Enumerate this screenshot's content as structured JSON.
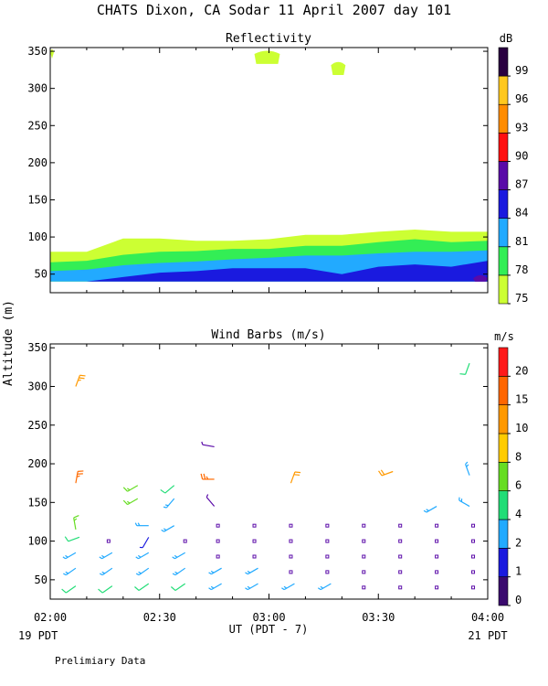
{
  "title": "CHATS Dixon, CA  Sodar  11 April 2007  day 101",
  "ylabel": "Altitude (m)",
  "xlabel": "UT  (PDT - 7)",
  "left_date": "19 PDT",
  "right_date": "21 PDT",
  "footnote": "Prelimiary Data",
  "x_ticks": [
    "02:00",
    "02:30",
    "03:00",
    "03:30",
    "04:00"
  ],
  "y_ticks": [
    "50",
    "100",
    "150",
    "200",
    "250",
    "300",
    "350"
  ],
  "chart_data": [
    {
      "type": "area",
      "title": "Reflectivity",
      "xlim": [
        0,
        120
      ],
      "ylim": [
        25,
        355
      ],
      "x_unit": "minutes after 02:00 UT",
      "colorbar": {
        "unit": "dB",
        "levels": [
          "75",
          "78",
          "81",
          "84",
          "87",
          "90",
          "93",
          "96",
          "99"
        ],
        "colors": [
          "#ccff33",
          "#33ee55",
          "#22aaff",
          "#1a1adf",
          "#5a0aa8",
          "#ff1010",
          "#ff8c00",
          "#ffc81e",
          "#2a0040"
        ]
      },
      "layers": [
        {
          "level": "75",
          "color": "#ccff33",
          "top": [
            [
              0,
              80
            ],
            [
              10,
              80
            ],
            [
              20,
              98
            ],
            [
              30,
              98
            ],
            [
              40,
              95
            ],
            [
              50,
              95
            ],
            [
              60,
              97
            ],
            [
              70,
              103
            ],
            [
              80,
              103
            ],
            [
              90,
              107
            ],
            [
              100,
              110
            ],
            [
              110,
              107
            ],
            [
              120,
              107
            ]
          ]
        },
        {
          "level": "78",
          "color": "#33ee55",
          "top": [
            [
              0,
              66
            ],
            [
              10,
              68
            ],
            [
              20,
              76
            ],
            [
              30,
              80
            ],
            [
              40,
              81
            ],
            [
              50,
              84
            ],
            [
              60,
              84
            ],
            [
              70,
              88
            ],
            [
              80,
              88
            ],
            [
              90,
              93
            ],
            [
              100,
              97
            ],
            [
              110,
              93
            ],
            [
              120,
              95
            ]
          ]
        },
        {
          "level": "81",
          "color": "#22aaff",
          "top": [
            [
              0,
              54
            ],
            [
              10,
              56
            ],
            [
              20,
              62
            ],
            [
              30,
              65
            ],
            [
              40,
              67
            ],
            [
              50,
              70
            ],
            [
              60,
              72
            ],
            [
              70,
              75
            ],
            [
              80,
              75
            ],
            [
              90,
              78
            ],
            [
              100,
              80
            ],
            [
              110,
              80
            ],
            [
              120,
              82
            ]
          ]
        },
        {
          "level": "84",
          "color": "#1a1adf",
          "top": [
            [
              0,
              40
            ],
            [
              10,
              40
            ],
            [
              20,
              46
            ],
            [
              30,
              52
            ],
            [
              40,
              54
            ],
            [
              50,
              58
            ],
            [
              60,
              58
            ],
            [
              70,
              58
            ],
            [
              80,
              50
            ],
            [
              90,
              60
            ],
            [
              100,
              63
            ],
            [
              110,
              60
            ],
            [
              120,
              68
            ]
          ]
        }
      ],
      "patches": [
        {
          "level": "75",
          "x": [
            -1,
            1
          ],
          "y": [
            340,
            352
          ]
        },
        {
          "level": "75",
          "x": [
            56,
            63
          ],
          "y": [
            333,
            350
          ]
        },
        {
          "level": "75",
          "x": [
            77,
            81
          ],
          "y": [
            318,
            335
          ]
        },
        {
          "level": "87",
          "x": [
            116,
            120
          ],
          "y": [
            40,
            48
          ]
        }
      ]
    },
    {
      "type": "scatter",
      "title": "Wind Barbs (m/s)",
      "xlim": [
        0,
        120
      ],
      "ylim": [
        25,
        355
      ],
      "colorbar": {
        "unit": "m/s",
        "levels": [
          "0",
          "1",
          "2",
          "4",
          "6",
          "8",
          "10",
          "15",
          "20"
        ],
        "colors": [
          "#3a0a6e",
          "#1a1adf",
          "#22aaff",
          "#22dd77",
          "#66dd22",
          "#ffcc00",
          "#ff9900",
          "#ff6600",
          "#ff1a1a"
        ]
      },
      "barbs": [
        {
          "t": 7,
          "z": 300,
          "dir": 20,
          "speed": 9,
          "color": "#ff9900"
        },
        {
          "t": 7,
          "z": 175,
          "dir": 10,
          "speed": 10,
          "color": "#ff6a00"
        },
        {
          "t": 7,
          "z": 115,
          "dir": 350,
          "speed": 5,
          "color": "#66dd22"
        },
        {
          "t": 8,
          "z": 105,
          "dir": 250,
          "speed": 4,
          "color": "#22dd77"
        },
        {
          "t": 7,
          "z": 85,
          "dir": 240,
          "speed": 3,
          "color": "#22aaff"
        },
        {
          "t": 7,
          "z": 65,
          "dir": 235,
          "speed": 3,
          "color": "#22aaff"
        },
        {
          "t": 7,
          "z": 42,
          "dir": 235,
          "speed": 4,
          "color": "#22dd77"
        },
        {
          "t": 17,
          "z": 85,
          "dir": 240,
          "speed": 3,
          "color": "#22aaff"
        },
        {
          "t": 17,
          "z": 65,
          "dir": 235,
          "speed": 3,
          "color": "#22aaff"
        },
        {
          "t": 17,
          "z": 42,
          "dir": 235,
          "speed": 4,
          "color": "#22dd77"
        },
        {
          "t": 16,
          "z": 100,
          "dir": 0,
          "speed": 0,
          "color": "#5a0aa8"
        },
        {
          "t": 24,
          "z": 172,
          "dir": 240,
          "speed": 5,
          "color": "#66dd22"
        },
        {
          "t": 24,
          "z": 155,
          "dir": 240,
          "speed": 5,
          "color": "#66dd22"
        },
        {
          "t": 27,
          "z": 120,
          "dir": 270,
          "speed": 3,
          "color": "#22aaff"
        },
        {
          "t": 27,
          "z": 105,
          "dir": 210,
          "speed": 1,
          "color": "#1a1adf"
        },
        {
          "t": 27,
          "z": 85,
          "dir": 240,
          "speed": 3,
          "color": "#22aaff"
        },
        {
          "t": 27,
          "z": 65,
          "dir": 235,
          "speed": 3,
          "color": "#22aaff"
        },
        {
          "t": 27,
          "z": 45,
          "dir": 235,
          "speed": 4,
          "color": "#22dd77"
        },
        {
          "t": 34,
          "z": 172,
          "dir": 230,
          "speed": 4,
          "color": "#22dd77"
        },
        {
          "t": 34,
          "z": 155,
          "dir": 220,
          "speed": 3,
          "color": "#22aaff"
        },
        {
          "t": 34,
          "z": 120,
          "dir": 240,
          "speed": 3,
          "color": "#22aaff"
        },
        {
          "t": 37,
          "z": 100,
          "dir": 0,
          "speed": 0,
          "color": "#5a0aa8"
        },
        {
          "t": 37,
          "z": 85,
          "dir": 240,
          "speed": 3,
          "color": "#22aaff"
        },
        {
          "t": 37,
          "z": 65,
          "dir": 235,
          "speed": 3,
          "color": "#22aaff"
        },
        {
          "t": 37,
          "z": 45,
          "dir": 235,
          "speed": 4,
          "color": "#22dd77"
        },
        {
          "t": 45,
          "z": 222,
          "dir": 280,
          "speed": 1,
          "color": "#5a0aa8"
        },
        {
          "t": 45,
          "z": 180,
          "dir": 270,
          "speed": 10,
          "color": "#ff6a00"
        },
        {
          "t": 45,
          "z": 145,
          "dir": 320,
          "speed": 1,
          "color": "#5a0aa8"
        },
        {
          "t": 46,
          "z": 120,
          "dir": 0,
          "speed": 0,
          "color": "#5a0aa8"
        },
        {
          "t": 46,
          "z": 100,
          "dir": 0,
          "speed": 0,
          "color": "#5a0aa8"
        },
        {
          "t": 46,
          "z": 80,
          "dir": 0,
          "speed": 0,
          "color": "#5a0aa8"
        },
        {
          "t": 47,
          "z": 65,
          "dir": 240,
          "speed": 3,
          "color": "#22aaff"
        },
        {
          "t": 47,
          "z": 45,
          "dir": 240,
          "speed": 3,
          "color": "#22aaff"
        },
        {
          "t": 56,
          "z": 120,
          "dir": 0,
          "speed": 0,
          "color": "#5a0aa8"
        },
        {
          "t": 56,
          "z": 100,
          "dir": 0,
          "speed": 0,
          "color": "#5a0aa8"
        },
        {
          "t": 56,
          "z": 80,
          "dir": 0,
          "speed": 0,
          "color": "#5a0aa8"
        },
        {
          "t": 57,
          "z": 65,
          "dir": 240,
          "speed": 3,
          "color": "#22aaff"
        },
        {
          "t": 57,
          "z": 45,
          "dir": 240,
          "speed": 3,
          "color": "#22aaff"
        },
        {
          "t": 66,
          "z": 175,
          "dir": 20,
          "speed": 8,
          "color": "#ff9900"
        },
        {
          "t": 66,
          "z": 120,
          "dir": 0,
          "speed": 0,
          "color": "#5a0aa8"
        },
        {
          "t": 66,
          "z": 100,
          "dir": 0,
          "speed": 0,
          "color": "#5a0aa8"
        },
        {
          "t": 66,
          "z": 80,
          "dir": 0,
          "speed": 0,
          "color": "#5a0aa8"
        },
        {
          "t": 66,
          "z": 60,
          "dir": 0,
          "speed": 0,
          "color": "#5a0aa8"
        },
        {
          "t": 67,
          "z": 45,
          "dir": 240,
          "speed": 3,
          "color": "#22aaff"
        },
        {
          "t": 76,
          "z": 120,
          "dir": 0,
          "speed": 0,
          "color": "#5a0aa8"
        },
        {
          "t": 76,
          "z": 100,
          "dir": 0,
          "speed": 0,
          "color": "#5a0aa8"
        },
        {
          "t": 76,
          "z": 80,
          "dir": 0,
          "speed": 0,
          "color": "#5a0aa8"
        },
        {
          "t": 76,
          "z": 60,
          "dir": 0,
          "speed": 0,
          "color": "#5a0aa8"
        },
        {
          "t": 77,
          "z": 45,
          "dir": 240,
          "speed": 3,
          "color": "#22aaff"
        },
        {
          "t": 86,
          "z": 120,
          "dir": 0,
          "speed": 0,
          "color": "#5a0aa8"
        },
        {
          "t": 86,
          "z": 100,
          "dir": 0,
          "speed": 0,
          "color": "#5a0aa8"
        },
        {
          "t": 86,
          "z": 80,
          "dir": 0,
          "speed": 0,
          "color": "#5a0aa8"
        },
        {
          "t": 86,
          "z": 60,
          "dir": 0,
          "speed": 0,
          "color": "#5a0aa8"
        },
        {
          "t": 86,
          "z": 40,
          "dir": 0,
          "speed": 0,
          "color": "#5a0aa8"
        },
        {
          "t": 94,
          "z": 190,
          "dir": 250,
          "speed": 8,
          "color": "#ff9900"
        },
        {
          "t": 96,
          "z": 120,
          "dir": 0,
          "speed": 0,
          "color": "#5a0aa8"
        },
        {
          "t": 96,
          "z": 100,
          "dir": 0,
          "speed": 0,
          "color": "#5a0aa8"
        },
        {
          "t": 96,
          "z": 80,
          "dir": 0,
          "speed": 0,
          "color": "#5a0aa8"
        },
        {
          "t": 96,
          "z": 60,
          "dir": 0,
          "speed": 0,
          "color": "#5a0aa8"
        },
        {
          "t": 96,
          "z": 40,
          "dir": 0,
          "speed": 0,
          "color": "#5a0aa8"
        },
        {
          "t": 106,
          "z": 145,
          "dir": 240,
          "speed": 3,
          "color": "#22aaff"
        },
        {
          "t": 106,
          "z": 120,
          "dir": 0,
          "speed": 0,
          "color": "#5a0aa8"
        },
        {
          "t": 106,
          "z": 100,
          "dir": 0,
          "speed": 0,
          "color": "#5a0aa8"
        },
        {
          "t": 106,
          "z": 80,
          "dir": 0,
          "speed": 0,
          "color": "#5a0aa8"
        },
        {
          "t": 106,
          "z": 60,
          "dir": 0,
          "speed": 0,
          "color": "#5a0aa8"
        },
        {
          "t": 106,
          "z": 40,
          "dir": 0,
          "speed": 0,
          "color": "#5a0aa8"
        },
        {
          "t": 115,
          "z": 330,
          "dir": 200,
          "speed": 4,
          "color": "#22dd77"
        },
        {
          "t": 115,
          "z": 185,
          "dir": 340,
          "speed": 3,
          "color": "#22aaff"
        },
        {
          "t": 115,
          "z": 145,
          "dir": 300,
          "speed": 3,
          "color": "#22aaff"
        },
        {
          "t": 116,
          "z": 120,
          "dir": 0,
          "speed": 0,
          "color": "#5a0aa8"
        },
        {
          "t": 116,
          "z": 100,
          "dir": 0,
          "speed": 0,
          "color": "#5a0aa8"
        },
        {
          "t": 116,
          "z": 80,
          "dir": 0,
          "speed": 0,
          "color": "#5a0aa8"
        },
        {
          "t": 116,
          "z": 60,
          "dir": 0,
          "speed": 0,
          "color": "#5a0aa8"
        },
        {
          "t": 116,
          "z": 40,
          "dir": 0,
          "speed": 0,
          "color": "#5a0aa8"
        }
      ]
    }
  ]
}
